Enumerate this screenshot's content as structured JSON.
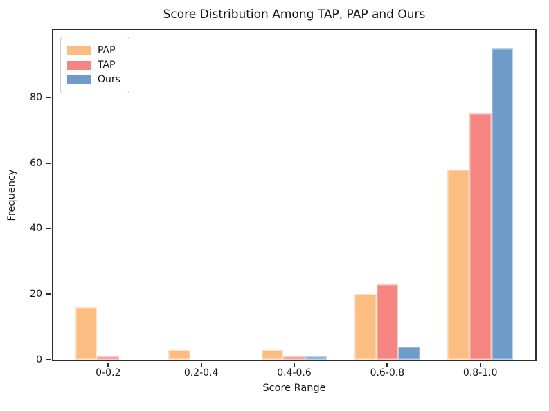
{
  "figure": {
    "background": "#ffffff",
    "spine_color": "#2c2c2c"
  },
  "chart_data": {
    "type": "bar",
    "title": "Score Distribution Among TAP, PAP and Ours",
    "xlabel": "Score Range",
    "ylabel": "Frequency",
    "categories": [
      "0-0.2",
      "0.2-0.4",
      "0.4-0.6",
      "0.6-0.8",
      "0.8-1.0"
    ],
    "series": [
      {
        "name": "PAP",
        "color": "#FCBD82",
        "values": [
          16,
          3,
          3,
          20,
          58
        ]
      },
      {
        "name": "TAP",
        "color": "#F48580",
        "values": [
          1,
          0,
          1,
          23,
          75
        ]
      },
      {
        "name": "Ours",
        "color": "#6E9BC7",
        "values": [
          0,
          0,
          1,
          4,
          95
        ]
      }
    ],
    "yticks": [
      0,
      20,
      40,
      60,
      80
    ],
    "ylim": [
      0,
      100.4
    ],
    "xlim": [
      -0.59,
      4.59
    ],
    "bar_width": 0.235,
    "grid": false,
    "legend_position": "upper-left"
  }
}
